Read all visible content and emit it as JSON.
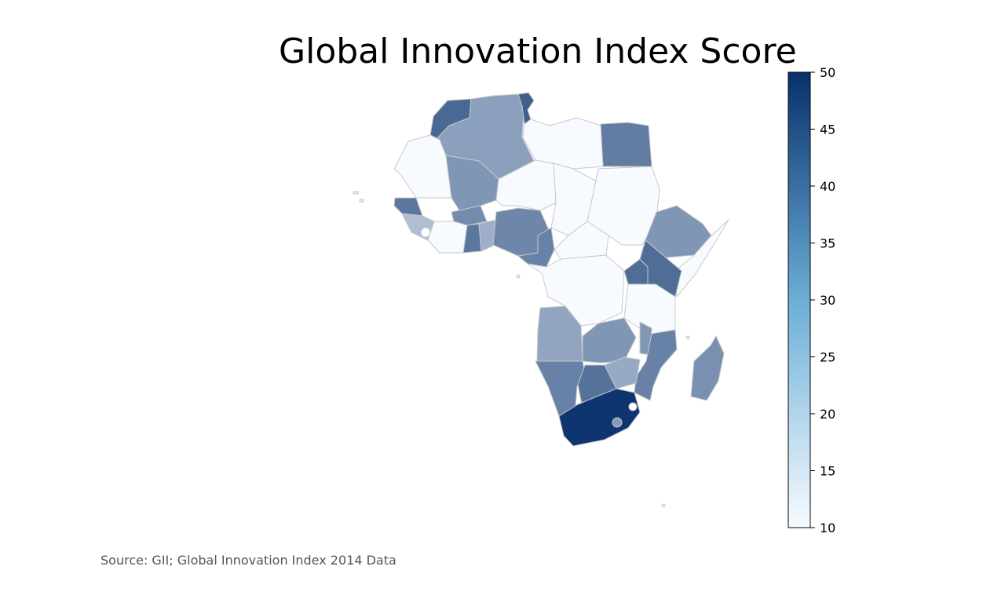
{
  "title": "Global Innovation Index Score",
  "source": "Source: GII; Global Innovation Index 2014 Data",
  "colormap": {
    "name": "Blues",
    "low": "#f7fbff",
    "high": "#08306b",
    "border": "#c8c8c8"
  },
  "colorbar": {
    "min": 10,
    "max": 50,
    "ticks": [
      10,
      15,
      20,
      25,
      30,
      35,
      40,
      45,
      50
    ]
  },
  "regions": [
    {
      "id": "morocco",
      "score": 39
    },
    {
      "id": "algeria",
      "score": 28
    },
    {
      "id": "tunisia",
      "score": 41
    },
    {
      "id": "egypt",
      "score": 35
    },
    {
      "id": "mauritania",
      "score": 10
    },
    {
      "id": "mali",
      "score": 30
    },
    {
      "id": "niger",
      "score": 10
    },
    {
      "id": "libya",
      "score": 10
    },
    {
      "id": "chad",
      "score": 10
    },
    {
      "id": "sudan",
      "score": 10
    },
    {
      "id": "senegal",
      "score": 36
    },
    {
      "id": "burkina-faso",
      "score": 32
    },
    {
      "id": "guinea",
      "score": 22
    },
    {
      "id": "cote-divoire",
      "score": 10
    },
    {
      "id": "ghana",
      "score": 36
    },
    {
      "id": "togo-benin",
      "score": 25
    },
    {
      "id": "nigeria",
      "score": 33
    },
    {
      "id": "cameroon",
      "score": 34
    },
    {
      "id": "ethiopia",
      "score": 30
    },
    {
      "id": "somalia",
      "score": 10
    },
    {
      "id": "central-african-republic",
      "score": 10
    },
    {
      "id": "dr-congo",
      "score": 10
    },
    {
      "id": "uganda",
      "score": 38
    },
    {
      "id": "kenya",
      "score": 38
    },
    {
      "id": "tanzania",
      "score": 10
    },
    {
      "id": "angola",
      "score": 27
    },
    {
      "id": "zambia",
      "score": 30
    },
    {
      "id": "malawi",
      "score": 30
    },
    {
      "id": "mozambique",
      "score": 34
    },
    {
      "id": "zimbabwe",
      "score": 26
    },
    {
      "id": "namibia",
      "score": 34
    },
    {
      "id": "botswana",
      "score": 37
    },
    {
      "id": "south-africa",
      "score": 49
    },
    {
      "id": "madagascar",
      "score": 31
    }
  ]
}
